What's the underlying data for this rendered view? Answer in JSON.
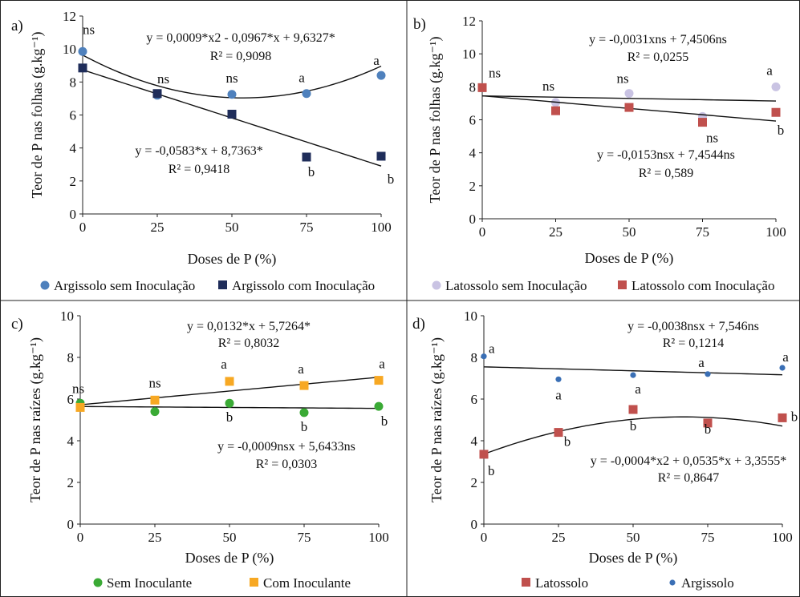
{
  "chart_data": [
    {
      "type": "scatter",
      "panel_label": "a)",
      "xlabel": "Doses de P (%)",
      "ylabel": "Teor de P nas folhas (g.kg⁻¹)",
      "xlim": [
        0,
        100
      ],
      "ylim": [
        0,
        12
      ],
      "x_ticks": [
        0,
        25,
        50,
        75,
        100
      ],
      "y_ticks": [
        0,
        2,
        4,
        6,
        8,
        10,
        12
      ],
      "grid": false,
      "legend_position": "bottom",
      "series": [
        {
          "name": "Argissolo sem Inoculação",
          "color": "#4f81bd",
          "marker": "circle",
          "x": [
            0,
            25,
            50,
            75,
            100
          ],
          "values": [
            9.85,
            7.2,
            7.25,
            7.3,
            8.4
          ],
          "point_labels": [
            "ns",
            "ns",
            "ns",
            "a",
            "a"
          ],
          "fit": {
            "kind": "quadratic",
            "coef": [
              0.0009,
              -0.0967,
              9.6327
            ]
          }
        },
        {
          "name": "Argissolo com Inoculação",
          "color": "#1f2d5a",
          "marker": "square",
          "x": [
            0,
            25,
            50,
            75,
            100
          ],
          "values": [
            8.85,
            7.3,
            6.05,
            3.45,
            3.5
          ],
          "point_labels": [
            "",
            "",
            "",
            "b",
            "b"
          ],
          "fit": {
            "kind": "linear",
            "coef": [
              -0.0583,
              8.7363
            ]
          }
        }
      ],
      "annotations": [
        "y = 0,0009*x2 - 0,0967*x + 9,6327*",
        "R² = 0,9098",
        "y = -0,0583*x + 8,7363*",
        "R² = 0,9418"
      ]
    },
    {
      "type": "scatter",
      "panel_label": "b)",
      "xlabel": "Doses de P (%)",
      "ylabel": "Teor de P nas folhas (g.kg⁻¹)",
      "xlim": [
        0,
        100
      ],
      "ylim": [
        0,
        12
      ],
      "x_ticks": [
        0,
        25,
        50,
        75,
        100
      ],
      "y_ticks": [
        0,
        2,
        4,
        6,
        8,
        10,
        12
      ],
      "grid": false,
      "legend_position": "bottom",
      "series": [
        {
          "name": "Latossolo sem Inoculação",
          "color": "#c9c3e3",
          "marker": "circle",
          "x": [
            0,
            25,
            50,
            75,
            100
          ],
          "values": [
            7.95,
            7.05,
            7.6,
            6.2,
            8.0
          ],
          "point_labels": [
            "ns",
            "ns",
            "ns",
            "",
            "a"
          ],
          "fit": {
            "kind": "linear",
            "coef": [
              -0.0031,
              7.4506
            ]
          }
        },
        {
          "name": "Latossolo com Inoculação",
          "color": "#c0504d",
          "marker": "square",
          "x": [
            0,
            25,
            50,
            75,
            100
          ],
          "values": [
            7.95,
            6.55,
            6.75,
            5.85,
            6.45
          ],
          "point_labels": [
            "",
            "",
            "",
            "ns",
            "b"
          ],
          "fit": {
            "kind": "linear",
            "coef": [
              -0.0153,
              7.4544
            ]
          }
        }
      ],
      "annotations": [
        "y = -0,0031xns + 7,4506ns",
        "R² = 0,0255",
        "y = -0,0153nsx + 7,4544ns",
        "R² = 0,589"
      ]
    },
    {
      "type": "scatter",
      "panel_label": "c)",
      "xlabel": "Doses de P (%)",
      "ylabel": "Teor de P nas raízes (g.kg⁻¹)",
      "xlim": [
        0,
        100
      ],
      "ylim": [
        0,
        10
      ],
      "x_ticks": [
        0,
        25,
        50,
        75,
        100
      ],
      "y_ticks": [
        0,
        2,
        4,
        6,
        8,
        10
      ],
      "grid": false,
      "legend_position": "bottom",
      "series": [
        {
          "name": "Sem Inoculante",
          "color": "#3aaa35",
          "marker": "circle",
          "x": [
            0,
            25,
            50,
            75,
            100
          ],
          "values": [
            5.8,
            5.4,
            5.8,
            5.35,
            5.65
          ],
          "point_labels": [
            "",
            "",
            "b",
            "b",
            "b"
          ],
          "fit": {
            "kind": "linear",
            "coef": [
              -0.0009,
              5.6433
            ]
          }
        },
        {
          "name": "Com Inoculante",
          "color": "#f7a823",
          "marker": "square",
          "x": [
            0,
            25,
            50,
            75,
            100
          ],
          "values": [
            5.6,
            5.95,
            6.85,
            6.65,
            6.9
          ],
          "point_labels": [
            "ns",
            "ns",
            "a",
            "a",
            "a"
          ],
          "fit": {
            "kind": "linear",
            "coef": [
              0.0132,
              5.7264
            ]
          }
        }
      ],
      "annotations": [
        "y = 0,0132*x + 5,7264*",
        "R² = 0,8032",
        "y = -0,0009nsx + 5,6433ns",
        "R² = 0,0303"
      ]
    },
    {
      "type": "scatter",
      "panel_label": "d)",
      "xlabel": "Doses de P (%)",
      "ylabel": "Teor de P nas raízes (g.kg⁻¹)",
      "xlim": [
        0,
        100
      ],
      "ylim": [
        0,
        10
      ],
      "x_ticks": [
        0,
        25,
        50,
        75,
        100
      ],
      "y_ticks": [
        0,
        2,
        4,
        6,
        8,
        10
      ],
      "grid": false,
      "legend_position": "bottom",
      "series": [
        {
          "name": "Latossolo",
          "color": "#c0504d",
          "marker": "square",
          "x": [
            0,
            25,
            50,
            75,
            100
          ],
          "values": [
            3.35,
            4.4,
            5.5,
            4.85,
            5.1
          ],
          "point_labels": [
            "b",
            "b",
            "b",
            "b",
            "b"
          ],
          "fit": {
            "kind": "quadratic",
            "coef": [
              -0.0004,
              0.0535,
              3.3555
            ]
          }
        },
        {
          "name": "Argissolo",
          "color": "#3a6fb5",
          "marker": "dot",
          "x": [
            0,
            25,
            50,
            75,
            100
          ],
          "values": [
            8.05,
            6.95,
            7.15,
            7.2,
            7.5
          ],
          "point_labels": [
            "a",
            "a",
            "a",
            "a",
            "a"
          ],
          "fit": {
            "kind": "linear",
            "coef": [
              -0.0038,
              7.546
            ]
          }
        }
      ],
      "annotations": [
        "y = -0,0038nsx + 7,546ns",
        "R² = 0,1214",
        "y = -0,0004*x2 + 0,0535*x + 3,3555*",
        "R² = 0,8647"
      ]
    }
  ]
}
